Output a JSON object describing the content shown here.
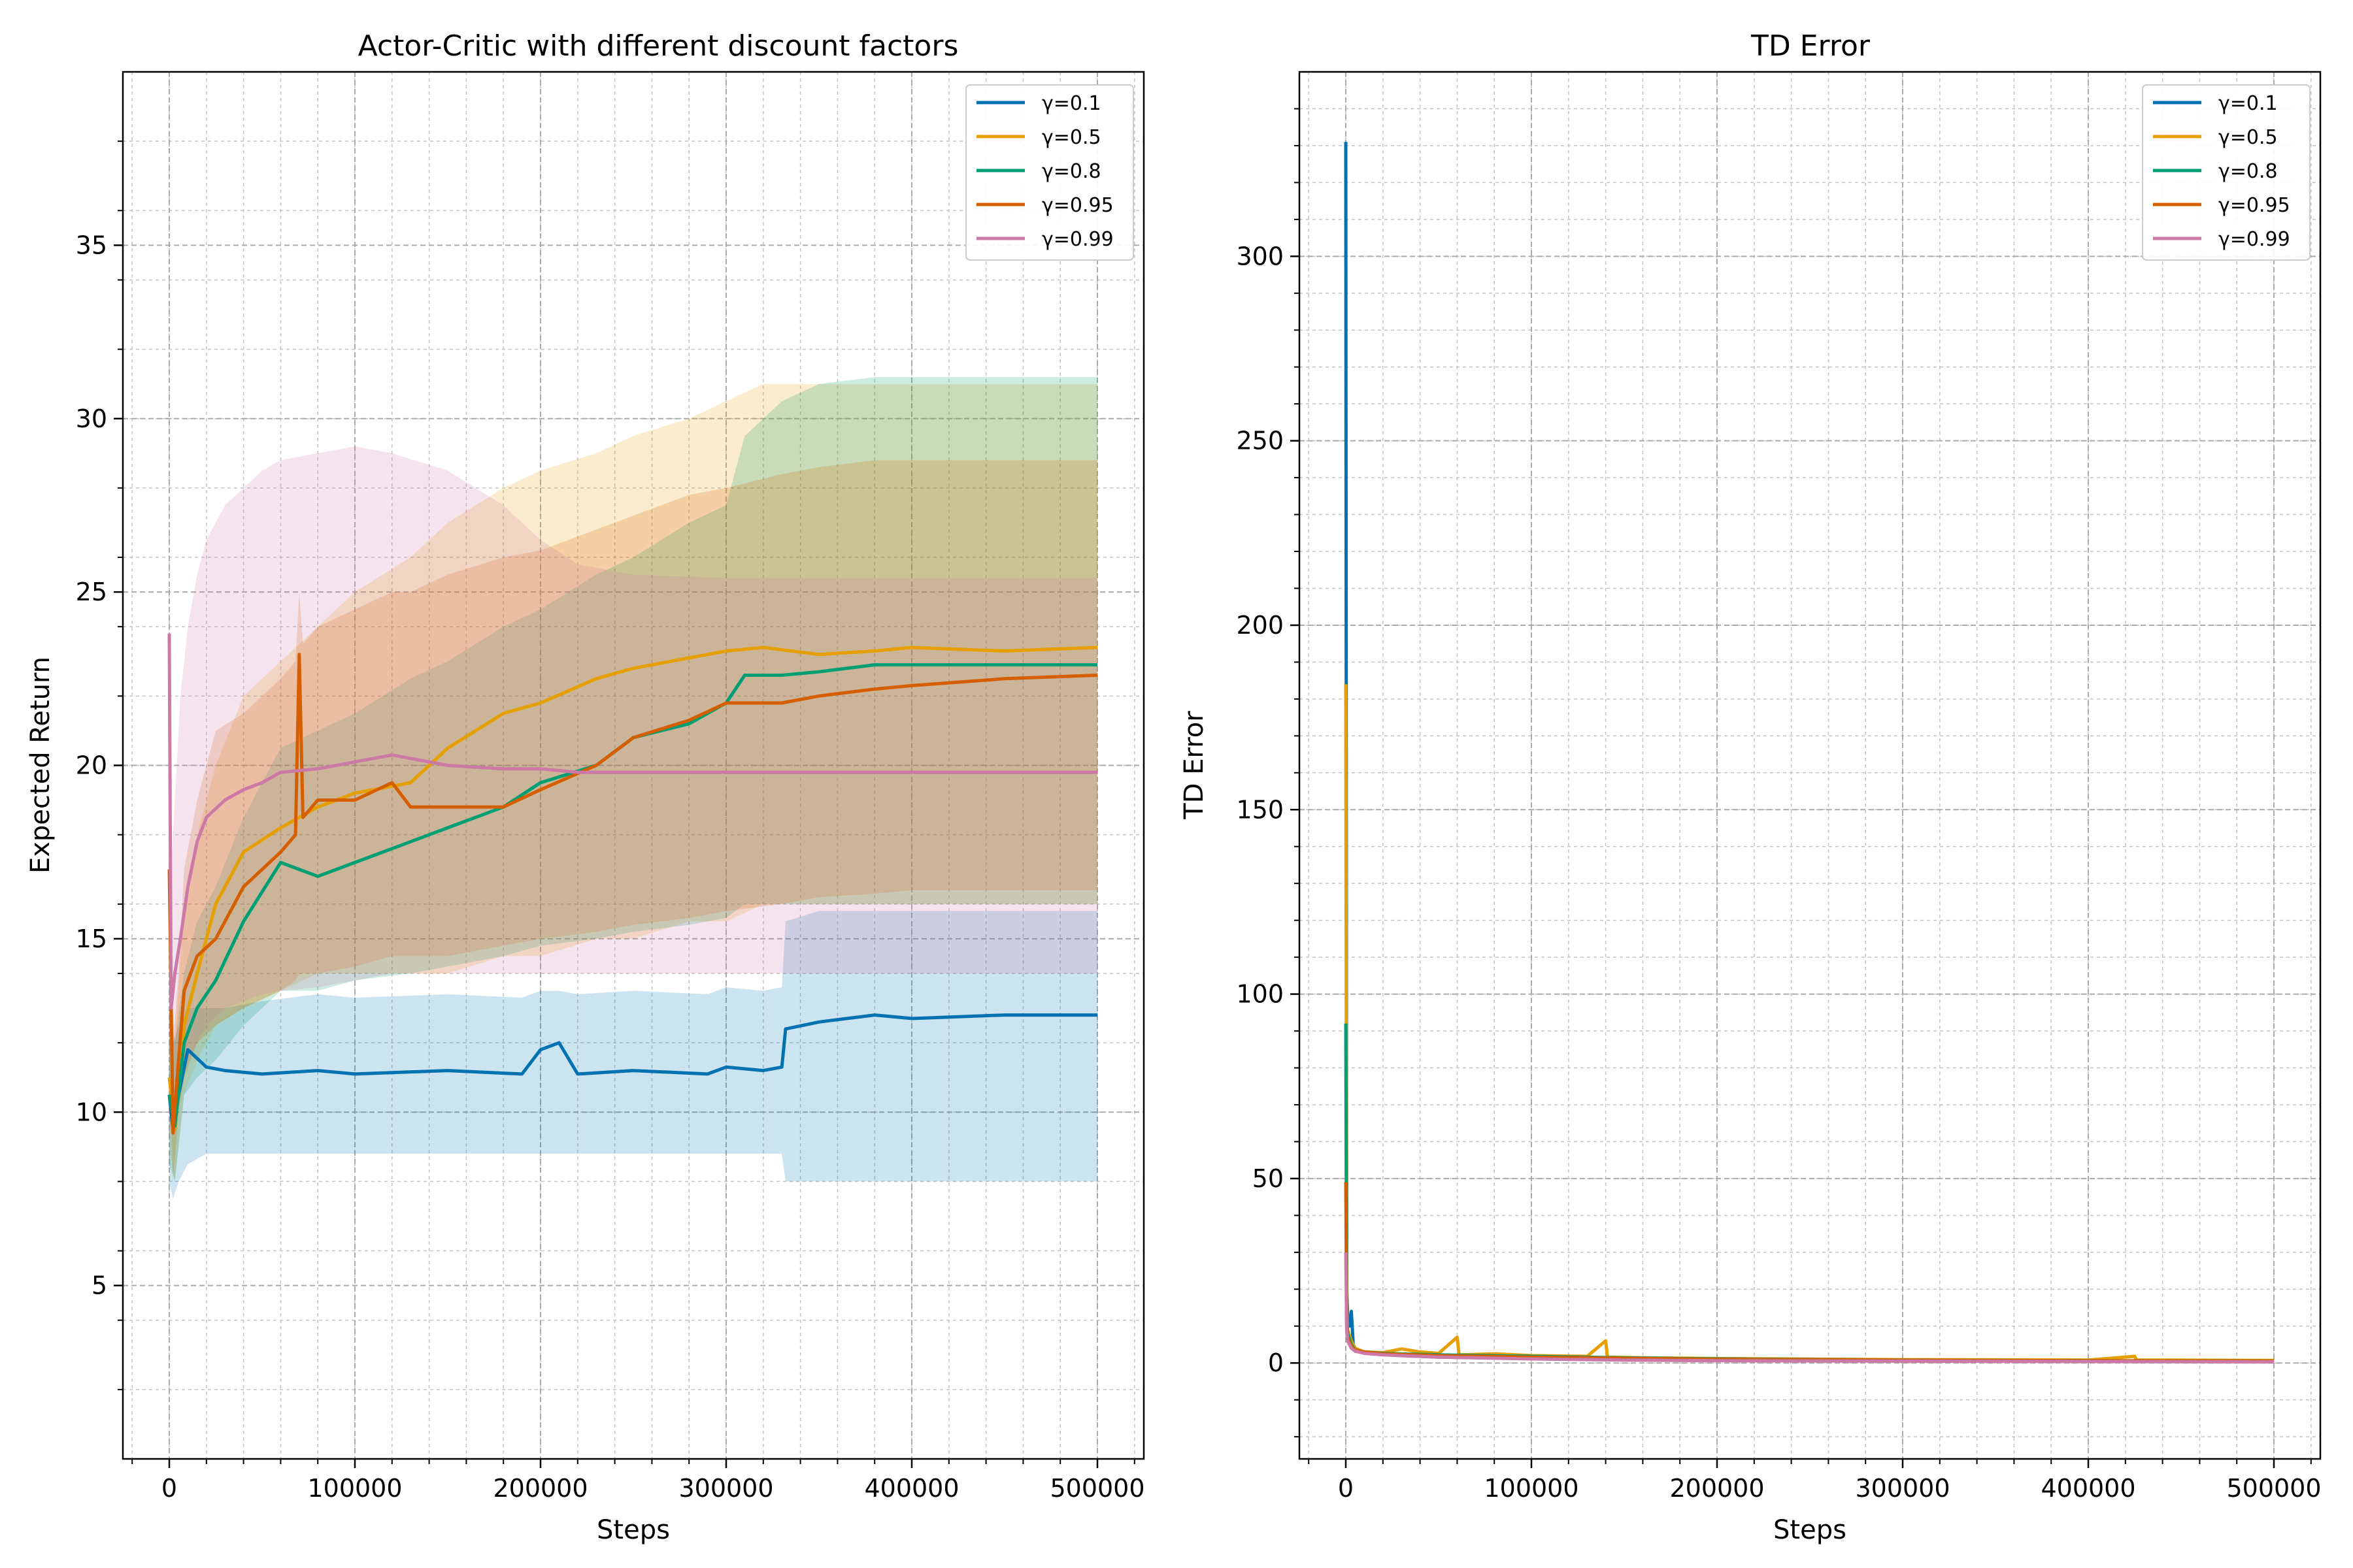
{
  "chart_data": [
    {
      "type": "line",
      "title": "Actor-Critic with different discount factors",
      "xlabel": "Steps",
      "ylabel": "Expected Return",
      "xlim": [
        -25000,
        525000
      ],
      "ylim": [
        0,
        40
      ],
      "xticks": [
        0,
        100000,
        200000,
        300000,
        400000,
        500000
      ],
      "yticks": [
        5,
        10,
        15,
        20,
        25,
        30,
        35
      ],
      "grid": true,
      "minor_grid": true,
      "legend_position": "top-right",
      "shaded_bands": true,
      "series": [
        {
          "name": "γ=0.1",
          "color": "#0072b2",
          "x": [
            0,
            2000,
            5000,
            10000,
            20000,
            30000,
            50000,
            80000,
            100000,
            150000,
            190000,
            200000,
            210000,
            220000,
            250000,
            290000,
            300000,
            320000,
            330000,
            332000,
            350000,
            380000,
            400000,
            450000,
            500000
          ],
          "y": [
            10.5,
            9.5,
            10.5,
            11.8,
            11.3,
            11.2,
            11.1,
            11.2,
            11.1,
            11.2,
            11.1,
            11.8,
            12.0,
            11.1,
            11.2,
            11.1,
            11.3,
            11.2,
            11.3,
            12.4,
            12.6,
            12.8,
            12.7,
            12.8,
            12.8
          ],
          "band_lower": [
            8.0,
            7.5,
            8.0,
            8.5,
            8.8,
            8.8,
            8.8,
            8.8,
            8.8,
            8.8,
            8.8,
            8.8,
            8.8,
            8.8,
            8.8,
            8.8,
            8.8,
            8.8,
            8.8,
            8.0,
            8.0,
            8.0,
            8.0,
            8.0,
            8.0
          ],
          "band_upper": [
            14.0,
            12.0,
            12.5,
            13.0,
            13.0,
            13.0,
            13.2,
            13.4,
            13.3,
            13.4,
            13.3,
            13.5,
            13.5,
            13.4,
            13.5,
            13.4,
            13.6,
            13.5,
            13.6,
            15.5,
            15.8,
            15.8,
            15.8,
            15.8,
            15.8
          ]
        },
        {
          "name": "γ=0.5",
          "color": "#e69f00",
          "x": [
            0,
            3000,
            8000,
            15000,
            25000,
            40000,
            60000,
            80000,
            100000,
            130000,
            150000,
            180000,
            200000,
            230000,
            250000,
            280000,
            300000,
            320000,
            350000,
            380000,
            400000,
            450000,
            500000
          ],
          "y": [
            11.0,
            9.5,
            12.5,
            14.0,
            16.0,
            17.5,
            18.2,
            18.8,
            19.2,
            19.5,
            20.5,
            21.5,
            21.8,
            22.5,
            22.8,
            23.1,
            23.3,
            23.4,
            23.2,
            23.3,
            23.4,
            23.3,
            23.4
          ],
          "band_lower": [
            9.0,
            8.0,
            10.5,
            11.5,
            12.5,
            13.0,
            13.5,
            14.0,
            14.0,
            14.0,
            14.0,
            14.5,
            14.5,
            15.0,
            15.0,
            15.5,
            15.5,
            16.0,
            16.0,
            16.0,
            16.0,
            16.0,
            16.0
          ],
          "band_upper": [
            14.0,
            12.0,
            16.0,
            18.0,
            20.0,
            22.0,
            23.0,
            24.0,
            25.0,
            26.0,
            27.0,
            28.0,
            28.5,
            29.0,
            29.5,
            30.0,
            30.5,
            31.0,
            31.0,
            31.0,
            31.0,
            31.0,
            31.0
          ]
        },
        {
          "name": "γ=0.8",
          "color": "#009e73",
          "x": [
            0,
            3000,
            8000,
            15000,
            25000,
            40000,
            60000,
            80000,
            100000,
            130000,
            150000,
            180000,
            200000,
            230000,
            250000,
            280000,
            300000,
            310000,
            330000,
            350000,
            380000,
            400000,
            450000,
            500000
          ],
          "y": [
            10.5,
            9.6,
            12.0,
            13.0,
            13.8,
            15.5,
            17.2,
            16.8,
            17.2,
            17.8,
            18.2,
            18.8,
            19.5,
            20.0,
            20.8,
            21.2,
            21.8,
            22.6,
            22.6,
            22.7,
            22.9,
            22.9,
            22.9,
            22.9
          ],
          "band_lower": [
            8.5,
            8.0,
            10.5,
            11.0,
            11.5,
            12.5,
            13.5,
            13.5,
            13.8,
            14.0,
            14.2,
            14.5,
            14.8,
            15.0,
            15.2,
            15.4,
            15.6,
            16.0,
            16.0,
            16.0,
            16.0,
            16.0,
            16.0,
            16.0
          ],
          "band_upper": [
            13.0,
            12.0,
            14.0,
            15.5,
            16.5,
            18.5,
            20.5,
            21.0,
            21.5,
            22.5,
            23.0,
            24.0,
            24.5,
            25.5,
            26.0,
            27.0,
            27.5,
            29.5,
            30.5,
            31.0,
            31.2,
            31.2,
            31.2,
            31.2
          ]
        },
        {
          "name": "γ=0.95",
          "color": "#d55e00",
          "x": [
            0,
            2000,
            5000,
            8000,
            15000,
            25000,
            40000,
            60000,
            68000,
            70000,
            72000,
            80000,
            100000,
            120000,
            130000,
            150000,
            180000,
            200000,
            230000,
            250000,
            280000,
            300000,
            330000,
            350000,
            380000,
            400000,
            450000,
            500000
          ],
          "y": [
            17.0,
            9.4,
            11.5,
            13.5,
            14.5,
            15.0,
            16.5,
            17.5,
            18.0,
            23.2,
            18.5,
            19.0,
            19.0,
            19.5,
            18.8,
            18.8,
            18.8,
            19.3,
            20.0,
            20.8,
            21.3,
            21.8,
            21.8,
            22.0,
            22.2,
            22.3,
            22.5,
            22.6
          ],
          "band_lower": [
            12.0,
            8.0,
            10.0,
            11.0,
            12.0,
            12.5,
            13.0,
            13.5,
            13.8,
            14.0,
            14.0,
            14.0,
            14.2,
            14.5,
            14.5,
            14.5,
            14.8,
            15.0,
            15.2,
            15.4,
            15.6,
            15.8,
            16.0,
            16.2,
            16.3,
            16.4,
            16.4,
            16.4
          ],
          "band_upper": [
            22.0,
            12.0,
            14.0,
            17.0,
            19.0,
            21.0,
            21.5,
            22.5,
            23.0,
            25.0,
            23.5,
            24.0,
            24.5,
            25.0,
            25.0,
            25.5,
            26.0,
            26.2,
            26.8,
            27.2,
            27.8,
            28.0,
            28.4,
            28.6,
            28.8,
            28.8,
            28.8,
            28.8
          ]
        },
        {
          "name": "γ=0.99",
          "color": "#cc79a7",
          "x": [
            0,
            1000,
            3000,
            6000,
            10000,
            15000,
            20000,
            30000,
            40000,
            50000,
            60000,
            80000,
            100000,
            120000,
            150000,
            180000,
            200000,
            220000,
            250000,
            300000,
            350000,
            400000,
            450000,
            500000
          ],
          "y": [
            23.8,
            13.0,
            14.0,
            15.0,
            16.5,
            17.8,
            18.5,
            19.0,
            19.3,
            19.5,
            19.8,
            19.9,
            20.1,
            20.3,
            20.0,
            19.9,
            19.9,
            19.8,
            19.8,
            19.8,
            19.8,
            19.8,
            19.8,
            19.8
          ],
          "band_lower": [
            18.0,
            10.0,
            10.5,
            11.0,
            11.5,
            12.0,
            12.5,
            13.0,
            13.2,
            13.4,
            13.5,
            13.6,
            13.8,
            14.0,
            14.0,
            14.0,
            14.0,
            14.0,
            14.0,
            14.0,
            14.0,
            14.0,
            14.0,
            14.0
          ],
          "band_upper": [
            25.0,
            17.0,
            19.0,
            22.0,
            24.0,
            25.5,
            26.5,
            27.5,
            28.0,
            28.5,
            28.8,
            29.0,
            29.2,
            29.0,
            28.5,
            27.5,
            26.5,
            25.8,
            25.5,
            25.4,
            25.4,
            25.4,
            25.4,
            25.4
          ]
        }
      ]
    },
    {
      "type": "line",
      "title": "TD Error",
      "xlabel": "Steps",
      "ylabel": "TD Error",
      "xlim": [
        -25000,
        525000
      ],
      "ylim": [
        -26,
        350
      ],
      "xticks": [
        0,
        100000,
        200000,
        300000,
        400000,
        500000
      ],
      "yticks": [
        0,
        50,
        100,
        150,
        200,
        250,
        300
      ],
      "grid": true,
      "minor_grid": true,
      "legend_position": "top-right",
      "series": [
        {
          "name": "γ=0.1",
          "color": "#0072b2",
          "x": [
            0,
            500,
            1000,
            2000,
            3000,
            4000,
            5000,
            8000,
            15000,
            30000,
            50000,
            100000,
            200000,
            300000,
            400000,
            500000
          ],
          "y": [
            331,
            20,
            13,
            10,
            14,
            5,
            4,
            3,
            2.5,
            2.0,
            1.6,
            1.2,
            0.8,
            0.6,
            0.5,
            0.4
          ]
        },
        {
          "name": "γ=0.5",
          "color": "#e69f00",
          "x": [
            0,
            500,
            1000,
            3000,
            5000,
            10000,
            20000,
            30000,
            40000,
            50000,
            60000,
            61000,
            62000,
            80000,
            100000,
            130000,
            140000,
            141000,
            160000,
            200000,
            300000,
            400000,
            425000,
            426000,
            500000
          ],
          "y": [
            184,
            15,
            9,
            6,
            4,
            3,
            2.8,
            3.8,
            3.0,
            2.6,
            7.0,
            2.4,
            2.2,
            2.5,
            2.0,
            1.8,
            6.0,
            1.6,
            1.4,
            1.2,
            0.9,
            0.8,
            1.8,
            0.8,
            0.7
          ]
        },
        {
          "name": "γ=0.8",
          "color": "#009e73",
          "x": [
            0,
            500,
            1000,
            3000,
            5000,
            10000,
            20000,
            50000,
            100000,
            150000,
            200000,
            300000,
            400000,
            500000
          ],
          "y": [
            92,
            12,
            8,
            5,
            3.5,
            3.0,
            2.6,
            2.2,
            1.8,
            1.4,
            1.1,
            0.8,
            0.6,
            0.5
          ]
        },
        {
          "name": "γ=0.95",
          "color": "#d55e00",
          "x": [
            0,
            500,
            1000,
            3000,
            5000,
            10000,
            20000,
            50000,
            100000,
            150000,
            200000,
            300000,
            400000,
            500000
          ],
          "y": [
            49,
            10,
            7,
            4.5,
            3.5,
            3.0,
            2.5,
            2.0,
            1.6,
            1.3,
            1.0,
            0.8,
            0.6,
            0.5
          ]
        },
        {
          "name": "γ=0.99",
          "color": "#cc79a7",
          "x": [
            0,
            500,
            1000,
            3000,
            5000,
            10000,
            20000,
            50000,
            100000,
            150000,
            200000,
            300000,
            400000,
            500000
          ],
          "y": [
            30,
            9,
            6,
            4,
            3.2,
            2.6,
            2.2,
            1.6,
            1.1,
            0.8,
            0.6,
            0.5,
            0.4,
            0.3
          ]
        }
      ]
    }
  ]
}
